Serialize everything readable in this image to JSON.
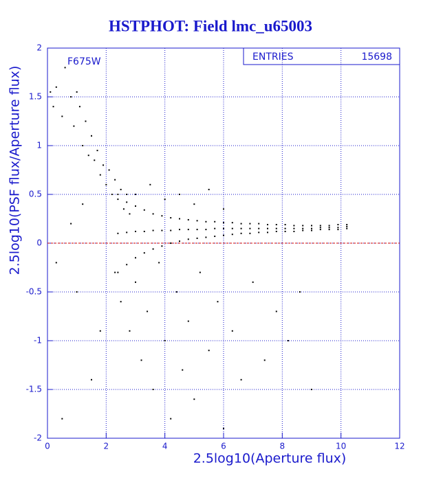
{
  "chart_data": {
    "type": "scatter",
    "title": "HSTPHOT: Field lmc_u65003",
    "x_label": "2.5log10(Aperture flux)",
    "y_label": "2.5log10(PSF flux/Aperture flux)",
    "annotation": "F675W",
    "entries_label": "ENTRIES",
    "entries": 15698,
    "xlim": [
      0,
      12
    ],
    "ylim": [
      -2,
      2
    ],
    "xticks": [
      0,
      2,
      4,
      6,
      8,
      10,
      12
    ],
    "yticks": [
      -2,
      -1.5,
      -1,
      -0.5,
      0,
      0.5,
      1,
      1.5,
      2
    ],
    "grid": true,
    "color": "#000000",
    "axis_color": "#1a1acc",
    "reference_line": {
      "value": 0,
      "color": "#cc0000"
    },
    "x": [
      0.1,
      0.2,
      0.3,
      0.5,
      0.6,
      0.8,
      0.9,
      1.0,
      1.1,
      1.2,
      1.3,
      1.4,
      1.5,
      1.6,
      1.7,
      1.8,
      1.9,
      2.0,
      2.1,
      2.2,
      2.3,
      2.4,
      2.5,
      2.6,
      2.7,
      2.8,
      2.4,
      2.7,
      3.0,
      3.3,
      3.6,
      3.9,
      4.2,
      4.5,
      4.8,
      5.1,
      5.4,
      5.7,
      6.0,
      6.3,
      6.6,
      6.9,
      7.2,
      7.5,
      7.8,
      8.1,
      8.4,
      8.7,
      9.0,
      9.3,
      9.6,
      9.9,
      10.2,
      2.4,
      2.7,
      3.0,
      3.3,
      3.6,
      3.9,
      4.2,
      4.5,
      4.8,
      5.1,
      5.4,
      5.7,
      6.0,
      6.3,
      6.6,
      6.9,
      7.2,
      7.5,
      7.8,
      8.1,
      8.4,
      8.7,
      9.0,
      9.3,
      9.6,
      9.9,
      10.2,
      2.4,
      2.7,
      3.0,
      3.3,
      3.6,
      3.9,
      4.2,
      4.5,
      4.8,
      5.1,
      5.4,
      5.7,
      6.0,
      6.3,
      6.6,
      6.9,
      7.2,
      7.5,
      7.8,
      8.1,
      8.4,
      8.7,
      9.0,
      9.3,
      9.6,
      9.9,
      10.2,
      2.3,
      2.5,
      2.8,
      3.0,
      3.2,
      3.4,
      3.6,
      3.8,
      4.0,
      4.2,
      4.4,
      4.6,
      4.8,
      5.0,
      5.2,
      5.5,
      5.8,
      6.0,
      6.3,
      6.6,
      7.0,
      7.4,
      7.8,
      8.2,
      8.6,
      9.0,
      1.0,
      1.5,
      0.5,
      1.8,
      3.0,
      3.5,
      4.0,
      4.5,
      5.0,
      5.5,
      6.0,
      0.8,
      1.2,
      0.3
    ],
    "y": [
      1.55,
      1.4,
      1.6,
      1.3,
      1.8,
      1.5,
      1.2,
      1.55,
      1.4,
      1.0,
      1.25,
      0.9,
      1.1,
      0.85,
      0.95,
      0.7,
      0.8,
      0.6,
      0.75,
      0.5,
      0.65,
      0.45,
      0.55,
      0.35,
      0.5,
      0.3,
      0.1,
      0.11,
      0.12,
      0.12,
      0.13,
      0.13,
      0.13,
      0.14,
      0.14,
      0.14,
      0.14,
      0.15,
      0.15,
      0.15,
      0.15,
      0.15,
      0.15,
      0.15,
      0.15,
      0.15,
      0.15,
      0.15,
      0.15,
      0.16,
      0.16,
      0.16,
      0.17,
      0.5,
      0.42,
      0.38,
      0.34,
      0.3,
      0.28,
      0.26,
      0.25,
      0.24,
      0.23,
      0.22,
      0.22,
      0.21,
      0.21,
      0.2,
      0.2,
      0.2,
      0.19,
      0.19,
      0.19,
      0.18,
      0.18,
      0.18,
      0.18,
      0.18,
      0.19,
      0.19,
      -0.3,
      -0.22,
      -0.15,
      -0.1,
      -0.06,
      -0.03,
      0,
      0.02,
      0.04,
      0.05,
      0.06,
      0.07,
      0.08,
      0.09,
      0.1,
      0.1,
      0.11,
      0.11,
      0.12,
      0.12,
      0.12,
      0.13,
      0.13,
      0.14,
      0.14,
      0.14,
      0.15,
      -0.3,
      -0.6,
      -0.9,
      -0.4,
      -1.2,
      -0.7,
      -1.5,
      -0.2,
      -1.0,
      -1.8,
      -0.5,
      -1.3,
      -0.8,
      -1.6,
      -0.3,
      -1.1,
      -0.6,
      -1.9,
      -0.9,
      -1.4,
      -0.4,
      -1.2,
      -0.7,
      -1.0,
      -0.5,
      -1.5,
      -0.5,
      -1.4,
      -1.8,
      -0.9,
      0.5,
      0.6,
      0.45,
      0.5,
      0.4,
      0.55,
      0.35,
      0.2,
      0.4,
      -0.2
    ]
  }
}
